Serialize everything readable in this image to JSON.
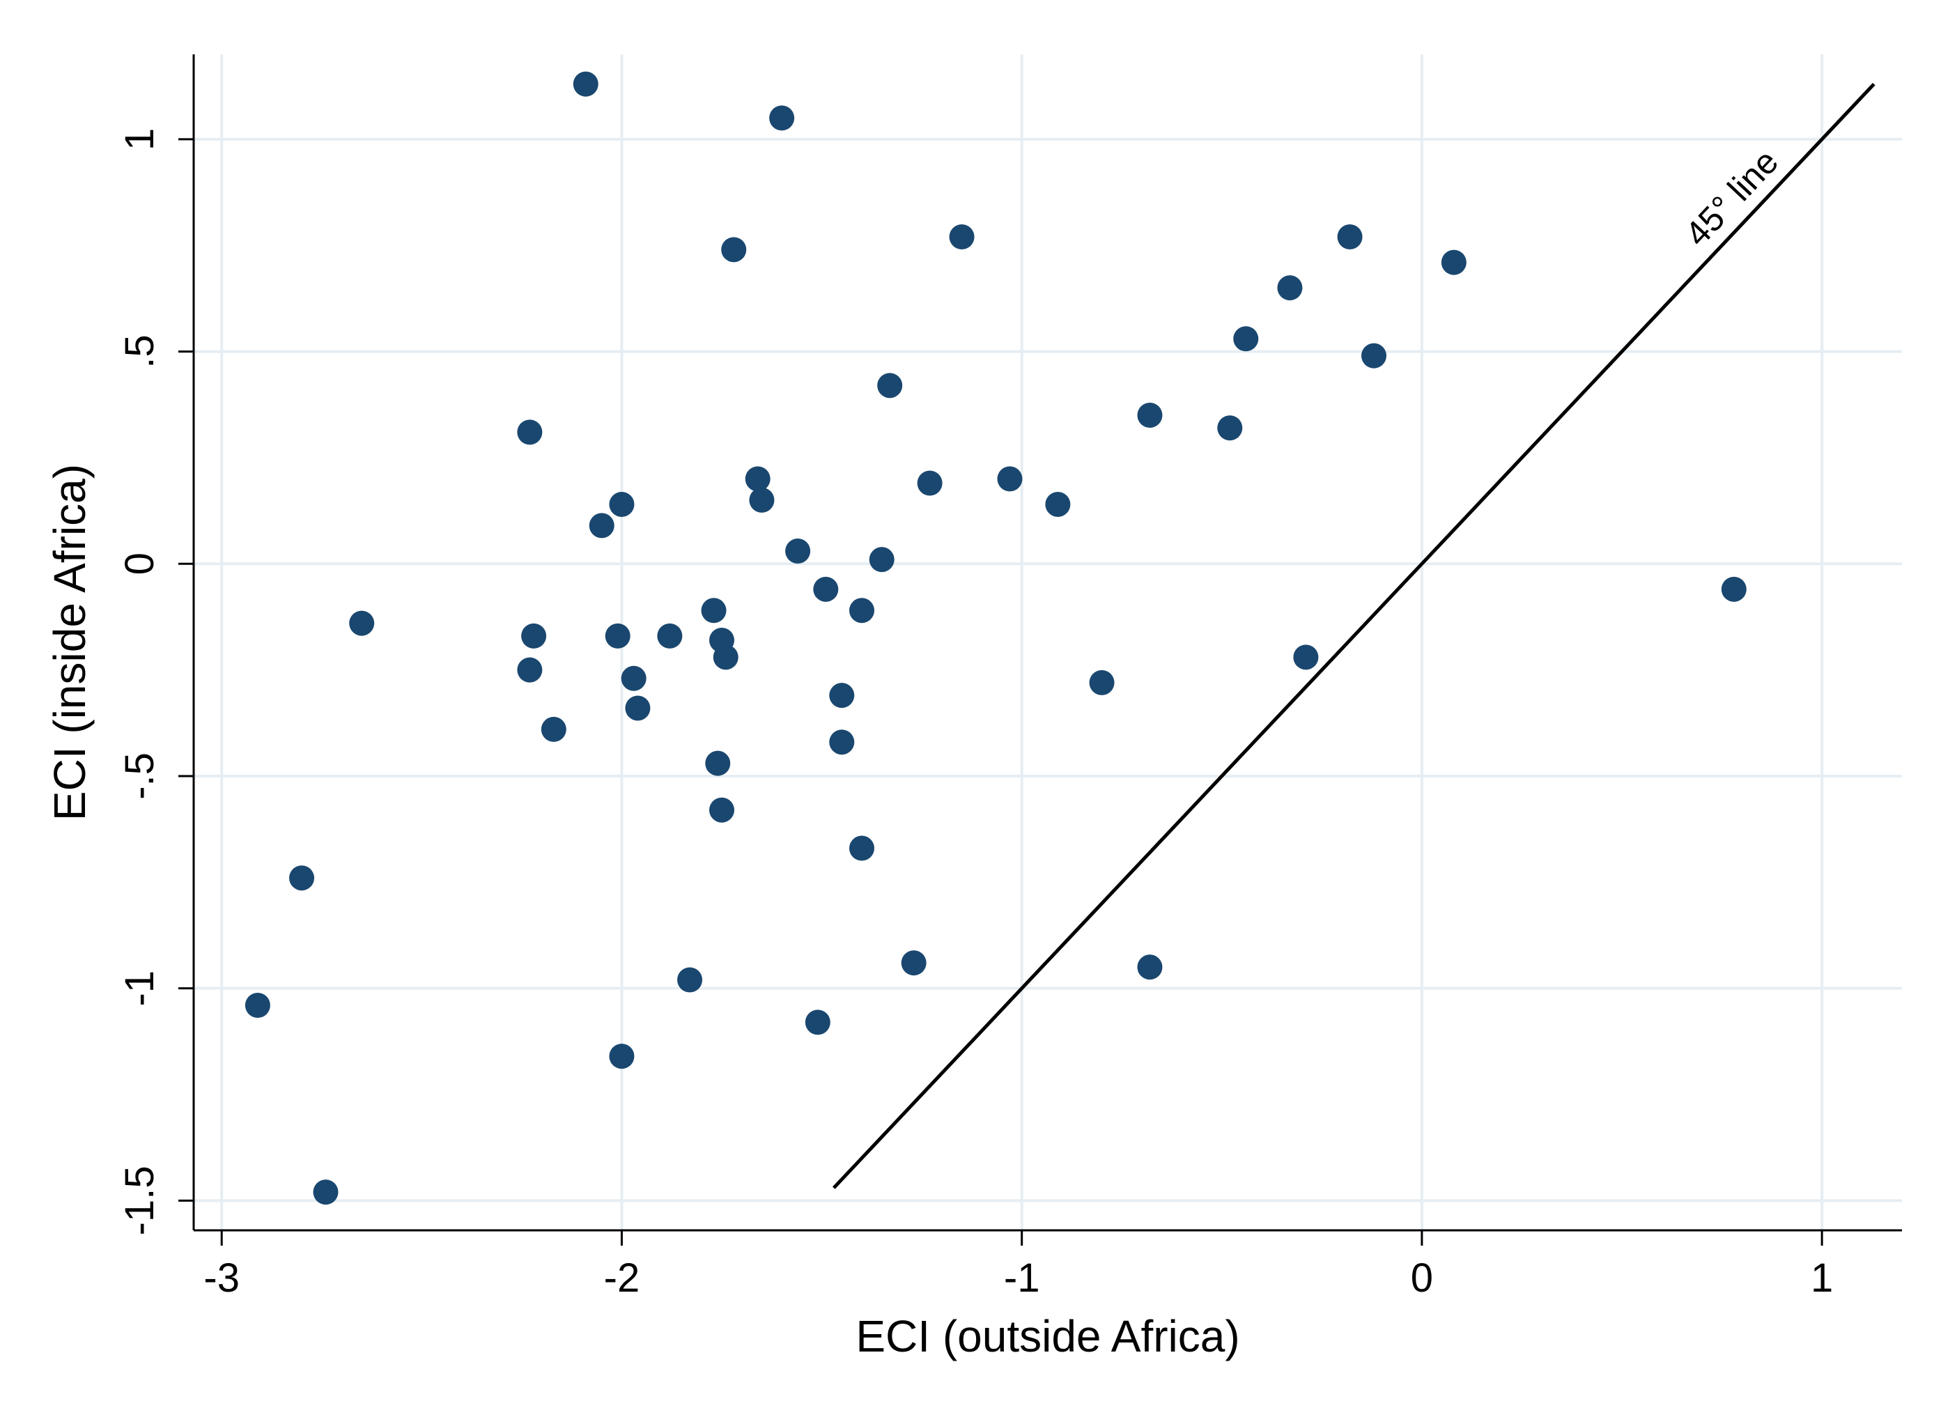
{
  "chart_data": {
    "type": "scatter",
    "title": "",
    "xlabel": "ECI (outside Africa)",
    "ylabel": "ECI (inside Africa)",
    "xlim": [
      -3.07,
      1.2
    ],
    "ylim": [
      -1.57,
      1.2
    ],
    "x_ticks": [
      {
        "value": -3,
        "label": "-3"
      },
      {
        "value": -2,
        "label": "-2"
      },
      {
        "value": -1,
        "label": "-1"
      },
      {
        "value": 0,
        "label": "0"
      },
      {
        "value": 1,
        "label": "1"
      }
    ],
    "y_ticks": [
      {
        "value": -1.5,
        "label": "-1.5"
      },
      {
        "value": -1,
        "label": "-1"
      },
      {
        "value": -0.5,
        "label": "-.5"
      },
      {
        "value": 0,
        "label": "0"
      },
      {
        "value": 0.5,
        "label": ".5"
      },
      {
        "value": 1,
        "label": "1"
      }
    ],
    "grid": true,
    "reference_line": {
      "label": "45° line",
      "x_start": -1.47,
      "x_end": 1.13
    },
    "colors": {
      "points": "#1a476f",
      "grid": "#e6eef3",
      "line": "#000000"
    },
    "points": [
      {
        "x": -2.09,
        "y": 1.13
      },
      {
        "x": -1.6,
        "y": 1.05
      },
      {
        "x": -1.72,
        "y": 0.74
      },
      {
        "x": -1.15,
        "y": 0.77
      },
      {
        "x": -0.18,
        "y": 0.77
      },
      {
        "x": 0.08,
        "y": 0.71
      },
      {
        "x": -0.33,
        "y": 0.65
      },
      {
        "x": -0.44,
        "y": 0.53
      },
      {
        "x": -0.12,
        "y": 0.49
      },
      {
        "x": -1.33,
        "y": 0.42
      },
      {
        "x": -2.23,
        "y": 0.31
      },
      {
        "x": -0.68,
        "y": 0.35
      },
      {
        "x": -0.48,
        "y": 0.32
      },
      {
        "x": -1.66,
        "y": 0.2
      },
      {
        "x": -1.65,
        "y": 0.15
      },
      {
        "x": -1.23,
        "y": 0.19
      },
      {
        "x": -1.03,
        "y": 0.2
      },
      {
        "x": -0.91,
        "y": 0.14
      },
      {
        "x": -2.0,
        "y": 0.14
      },
      {
        "x": -2.05,
        "y": 0.09
      },
      {
        "x": -1.56,
        "y": 0.03
      },
      {
        "x": -1.35,
        "y": 0.01
      },
      {
        "x": -1.49,
        "y": -0.06
      },
      {
        "x": -1.4,
        "y": -0.11
      },
      {
        "x": -2.65,
        "y": -0.14
      },
      {
        "x": -2.22,
        "y": -0.17
      },
      {
        "x": -2.01,
        "y": -0.17
      },
      {
        "x": -1.88,
        "y": -0.17
      },
      {
        "x": -1.77,
        "y": -0.11
      },
      {
        "x": -1.75,
        "y": -0.18
      },
      {
        "x": -1.74,
        "y": -0.22
      },
      {
        "x": -2.23,
        "y": -0.25
      },
      {
        "x": -1.97,
        "y": -0.27
      },
      {
        "x": -1.96,
        "y": -0.34
      },
      {
        "x": -2.17,
        "y": -0.39
      },
      {
        "x": -1.45,
        "y": -0.31
      },
      {
        "x": -1.45,
        "y": -0.42
      },
      {
        "x": -0.29,
        "y": -0.22
      },
      {
        "x": -0.8,
        "y": -0.28
      },
      {
        "x": 0.78,
        "y": -0.06
      },
      {
        "x": -1.76,
        "y": -0.47
      },
      {
        "x": -1.75,
        "y": -0.58
      },
      {
        "x": -1.4,
        "y": -0.67
      },
      {
        "x": -2.8,
        "y": -0.74
      },
      {
        "x": -1.27,
        "y": -0.94
      },
      {
        "x": -0.68,
        "y": -0.95
      },
      {
        "x": -1.83,
        "y": -0.98
      },
      {
        "x": -2.91,
        "y": -1.04
      },
      {
        "x": -1.51,
        "y": -1.08
      },
      {
        "x": -2.0,
        "y": -1.16
      },
      {
        "x": -2.74,
        "y": -1.48
      }
    ]
  }
}
